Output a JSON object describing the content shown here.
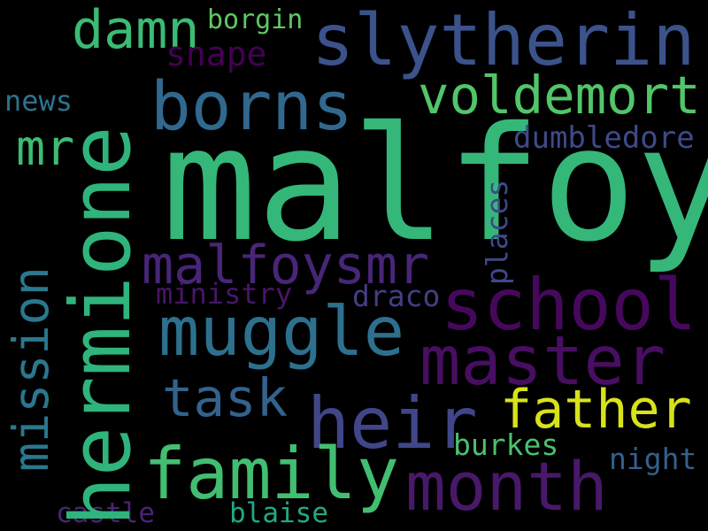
{
  "words": [
    {
      "text": "malfoy",
      "color": "#35b779",
      "rotated": false
    },
    {
      "text": "hermione",
      "color": "#2fb47c",
      "rotated": true
    },
    {
      "text": "slytherin",
      "color": "#3b528b",
      "rotated": false
    },
    {
      "text": "borns",
      "color": "#31688e",
      "rotated": false
    },
    {
      "text": "damn",
      "color": "#3bbb75",
      "rotated": false
    },
    {
      "text": "borgin",
      "color": "#5ec962",
      "rotated": false
    },
    {
      "text": "snape",
      "color": "#440154",
      "rotated": false
    },
    {
      "text": "voldemort",
      "color": "#52c569",
      "rotated": false
    },
    {
      "text": "news",
      "color": "#2c728e",
      "rotated": false
    },
    {
      "text": "mr",
      "color": "#3dbc74",
      "rotated": false
    },
    {
      "text": "dumbledore",
      "color": "#3e4a89",
      "rotated": false
    },
    {
      "text": "malfoysmr",
      "color": "#482677",
      "rotated": false
    },
    {
      "text": "places",
      "color": "#3e4989",
      "rotated": true
    },
    {
      "text": "mission",
      "color": "#2a788e",
      "rotated": true
    },
    {
      "text": "school",
      "color": "#46085c",
      "rotated": false
    },
    {
      "text": "ministry",
      "color": "#481668",
      "rotated": false
    },
    {
      "text": "draco",
      "color": "#433e85",
      "rotated": false
    },
    {
      "text": "muggle",
      "color": "#2d708e",
      "rotated": false
    },
    {
      "text": "master",
      "color": "#470e61",
      "rotated": false
    },
    {
      "text": "task",
      "color": "#33628d",
      "rotated": false
    },
    {
      "text": "heir",
      "color": "#404688",
      "rotated": false
    },
    {
      "text": "father",
      "color": "#d8e219",
      "rotated": false
    },
    {
      "text": "family",
      "color": "#42be71",
      "rotated": false
    },
    {
      "text": "month",
      "color": "#48186a",
      "rotated": false
    },
    {
      "text": "burkes",
      "color": "#4ac16d",
      "rotated": false
    },
    {
      "text": "night",
      "color": "#355f8d",
      "rotated": false
    },
    {
      "text": "castle",
      "color": "#482475",
      "rotated": false
    },
    {
      "text": "blaise",
      "color": "#22a884",
      "rotated": false
    }
  ]
}
